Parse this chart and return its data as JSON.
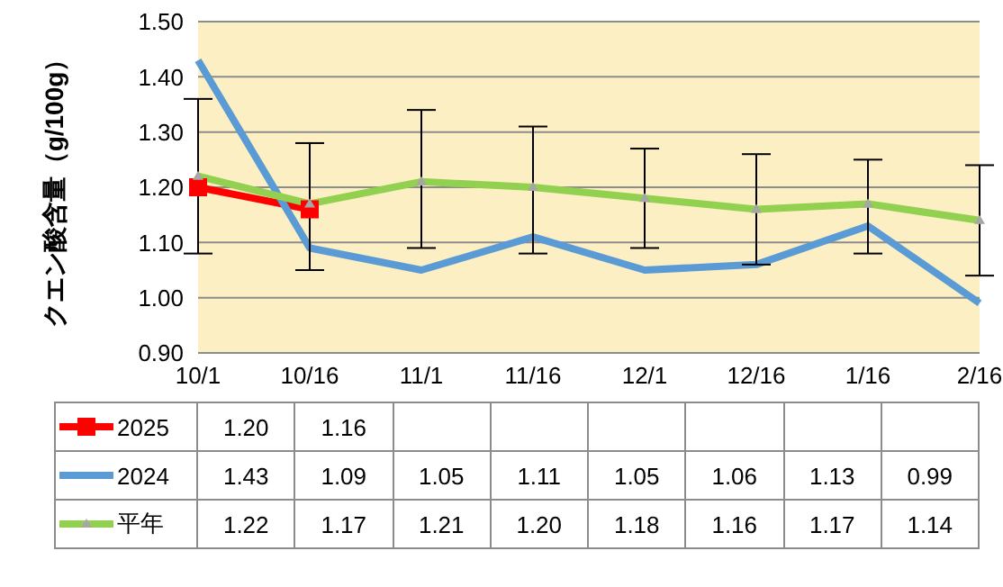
{
  "chart_data": {
    "type": "line",
    "ylabel": "クエン酸含量（g/100g）",
    "categories": [
      "10/1",
      "10/16",
      "11/1",
      "11/16",
      "12/1",
      "12/16",
      "1/16",
      "2/16"
    ],
    "series": [
      {
        "name": "2025",
        "color": "#ff0000",
        "marker": "square",
        "values": [
          1.2,
          1.16,
          null,
          null,
          null,
          null,
          null,
          null
        ],
        "value_labels": [
          "1.20",
          "1.16",
          null,
          null,
          null,
          null,
          null,
          null
        ]
      },
      {
        "name": "2024",
        "color": "#5b9bd5",
        "marker": "none",
        "values": [
          1.43,
          1.09,
          1.05,
          1.11,
          1.05,
          1.06,
          1.13,
          0.99
        ],
        "value_labels": [
          "1.43",
          "1.09",
          "1.05",
          "1.11",
          "1.05",
          "1.06",
          "1.13",
          "0.99"
        ]
      },
      {
        "name": "平年",
        "color": "#92d050",
        "marker": "triangle",
        "values": [
          1.22,
          1.17,
          1.21,
          1.2,
          1.18,
          1.16,
          1.17,
          1.14
        ],
        "value_labels": [
          "1.22",
          "1.17",
          "1.21",
          "1.20",
          "1.18",
          "1.16",
          "1.17",
          "1.14"
        ],
        "errors": [
          [
            1.08,
            1.36
          ],
          [
            1.05,
            1.28
          ],
          [
            1.09,
            1.34
          ],
          [
            1.08,
            1.31
          ],
          [
            1.09,
            1.27
          ],
          [
            1.06,
            1.26
          ],
          [
            1.08,
            1.25
          ],
          [
            1.04,
            1.24
          ]
        ]
      }
    ],
    "ylim": [
      0.9,
      1.5
    ],
    "yticks": [
      {
        "value": 0.9,
        "label": "0.90"
      },
      {
        "value": 1.0,
        "label": "1.00"
      },
      {
        "value": 1.1,
        "label": "1.10"
      },
      {
        "value": 1.2,
        "label": "1.20"
      },
      {
        "value": 1.3,
        "label": "1.30"
      },
      {
        "value": 1.4,
        "label": "1.40"
      },
      {
        "value": 1.5,
        "label": "1.50"
      }
    ],
    "grid": "y",
    "legend": "bottom left"
  }
}
